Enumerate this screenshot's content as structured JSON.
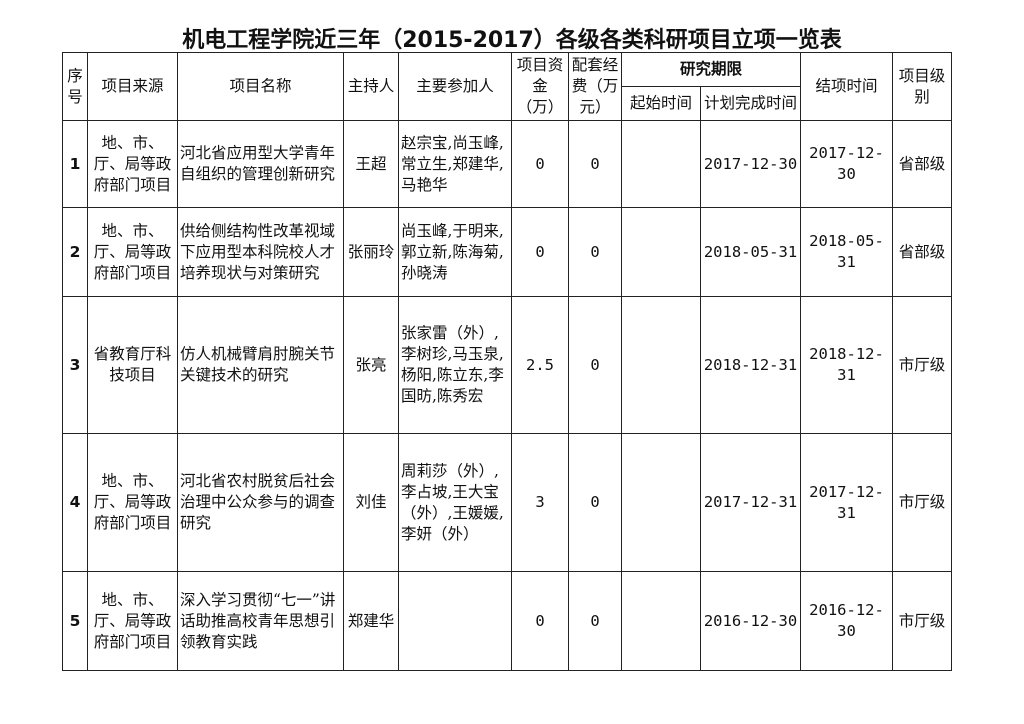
{
  "title": "机电工程学院近三年（2015-2017）各级各类科研项目立项一览表",
  "headers": {
    "seq": "序号",
    "source": "项目来源",
    "name": "项目名称",
    "host": "主持人",
    "members": "主要参加人",
    "funds": "项目资金（万）",
    "matching": "配套经费（万元）",
    "period": "研究期限",
    "start": "起始时间",
    "planned_end": "计划完成时间",
    "closed": "结项时间",
    "level": "项目级别"
  },
  "rows": [
    {
      "seq": "1",
      "source": "地、市、厅、局等政府部门项目",
      "name": "河北省应用型大学青年自组织的管理创新研究",
      "host": "王超",
      "members": "赵宗宝,尚玉峰,常立生,郑建华,马艳华",
      "funds": "0",
      "matching": "0",
      "start": "",
      "planned_end": "2017-12-30",
      "closed": "2017-12-30",
      "level": "省部级"
    },
    {
      "seq": "2",
      "source": "地、市、厅、局等政府部门项目",
      "name": "供给侧结构性改革视域下应用型本科院校人才培养现状与对策研究",
      "host": "张丽玲",
      "members": "尚玉峰,于明来,郭立新,陈海菊,孙晓涛",
      "funds": "0",
      "matching": "0",
      "start": "",
      "planned_end": "2018-05-31",
      "closed": "2018-05-31",
      "level": "省部级"
    },
    {
      "seq": "3",
      "source": "省教育厅科技项目",
      "name": "仿人机械臂肩肘腕关节关键技术的研究",
      "host": "张亮",
      "members": "张家雷（外）,李树珍,马玉泉,杨阳,陈立东,李国昉,陈秀宏",
      "funds": "2.5",
      "matching": "0",
      "start": "",
      "planned_end": "2018-12-31",
      "closed": "2018-12-31",
      "level": "市厅级"
    },
    {
      "seq": "4",
      "source": "地、市、厅、局等政府部门项目",
      "name": "河北省农村脱贫后社会治理中公众参与的调查研究",
      "host": "刘佳",
      "members": "周莉莎（外）,李占坡,王大宝（外）,王媛媛,李妍（外）",
      "funds": "3",
      "matching": "0",
      "start": "",
      "planned_end": "2017-12-31",
      "closed": "2017-12-31",
      "level": "市厅级"
    },
    {
      "seq": "5",
      "source": "地、市、厅、局等政府部门项目",
      "name": "深入学习贯彻“七一”讲话助推高校青年思想引领教育实践",
      "host": "郑建华",
      "members": "",
      "funds": "0",
      "matching": "0",
      "start": "",
      "planned_end": "2016-12-30",
      "closed": "2016-12-30",
      "level": "市厅级"
    }
  ]
}
